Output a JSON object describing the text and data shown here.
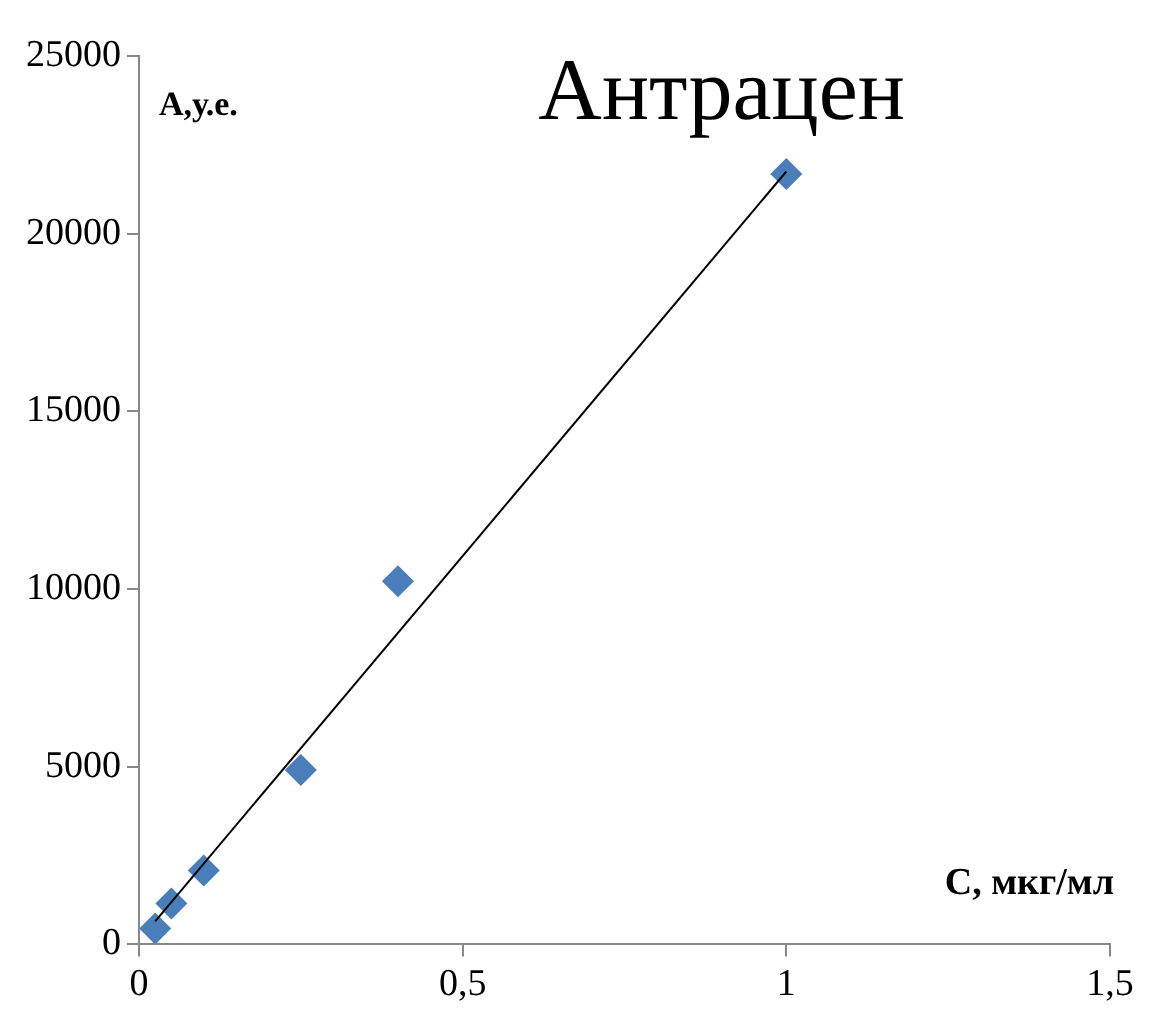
{
  "chart_data": {
    "type": "scatter",
    "title": "Антрацен",
    "xlabel": "С, мкг/мл",
    "ylabel": "А,у.е.",
    "xlim": [
      0,
      1.5
    ],
    "xticks": [
      0,
      {
        "value": 0.5,
        "label": "0,5"
      },
      1,
      {
        "value": 1.5,
        "label": "1,5"
      }
    ],
    "ylim": [
      0,
      25000
    ],
    "yticks": [
      0,
      5000,
      10000,
      15000,
      20000,
      25000
    ],
    "grid": false,
    "legend": false,
    "marker": "diamond",
    "series": [
      {
        "color": "#4a7ebb",
        "x": [
          0.025,
          0.05,
          0.1,
          0.25,
          0.4,
          1.0
        ],
        "values": [
          450,
          1150,
          2080,
          4910,
          10220,
          21680
        ]
      },
      {
        "type": "line",
        "color": "#000000",
        "x": [
          0.025,
          1.0
        ],
        "values": [
          650,
          21750
        ],
        "marker": "none",
        "line_style": "solid"
      }
    ]
  }
}
